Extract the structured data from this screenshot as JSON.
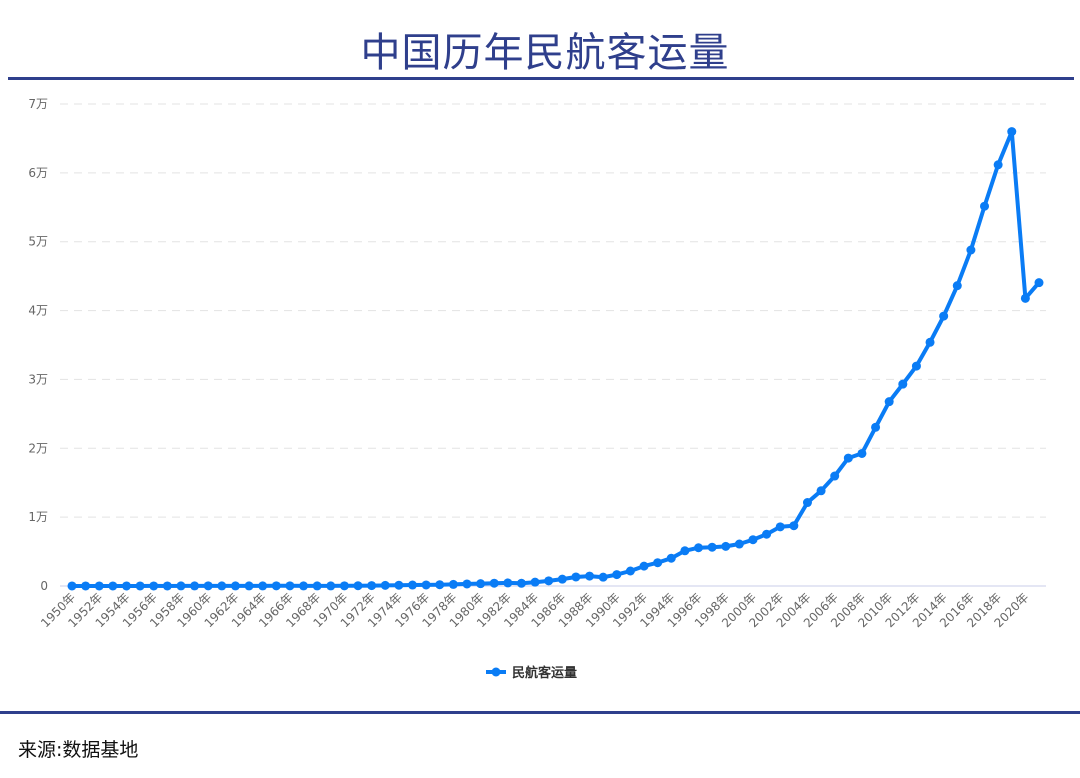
{
  "title": "中国历年民航客运量",
  "source": "来源:数据基地",
  "chart_data": {
    "type": "line",
    "title": "中国历年民航客运量",
    "x": [
      1950,
      1951,
      1952,
      1953,
      1954,
      1955,
      1956,
      1957,
      1958,
      1959,
      1960,
      1961,
      1962,
      1963,
      1964,
      1965,
      1966,
      1967,
      1968,
      1969,
      1970,
      1971,
      1972,
      1973,
      1974,
      1975,
      1976,
      1977,
      1978,
      1979,
      1980,
      1981,
      1982,
      1983,
      1984,
      1985,
      1986,
      1987,
      1988,
      1989,
      1990,
      1991,
      1992,
      1993,
      1994,
      1995,
      1996,
      1997,
      1998,
      1999,
      2000,
      2001,
      2002,
      2003,
      2004,
      2005,
      2006,
      2007,
      2008,
      2009,
      2010,
      2011,
      2012,
      2013,
      2014,
      2015,
      2016,
      2017,
      2018,
      2019,
      2020,
      2021
    ],
    "series": [
      {
        "name": "民航客运量",
        "color": "#0a7cf5",
        "values": [
          1,
          2,
          2,
          4,
          4,
          5,
          9,
          7,
          11,
          13,
          20,
          14,
          12,
          13,
          15,
          27,
          22,
          12,
          14,
          17,
          22,
          39,
          56,
          91,
          117,
          139,
          154,
          186,
          231,
          298,
          343,
          401,
          445,
          391,
          554,
          747,
          997,
          1310,
          1442,
          1283,
          1660,
          2178,
          2886,
          3383,
          4038,
          5117,
          5555,
          5630,
          5755,
          6094,
          6722,
          7524,
          8594,
          8759,
          12123,
          13827,
          15968,
          18576,
          19251,
          23052,
          26769,
          29317,
          31936,
          35397,
          39195,
          43618,
          48796,
          55156,
          61174,
          65993,
          41778,
          44056
        ]
      }
    ],
    "xtick_labels": [
      "1950年",
      "1952年",
      "1954年",
      "1956年",
      "1958年",
      "1960年",
      "1962年",
      "1964年",
      "1966年",
      "1968年",
      "1970年",
      "1972年",
      "1974年",
      "1976年",
      "1978年",
      "1980年",
      "1982年",
      "1984年",
      "1986年",
      "1988年",
      "1990年",
      "1992年",
      "1994年",
      "1996年",
      "1998年",
      "2000年",
      "2002年",
      "2004年",
      "2006年",
      "2008年",
      "2010年",
      "2012年",
      "2014年",
      "2016年",
      "2018年",
      "2020年"
    ],
    "ytick_values": [
      0,
      10000,
      20000,
      30000,
      40000,
      50000,
      60000,
      70000
    ],
    "ytick_labels": [
      "0",
      "1万",
      "2万",
      "3万",
      "4万",
      "5万",
      "6万",
      "7万"
    ],
    "ylim": [
      0,
      70000
    ],
    "grid": "horizontal dashed",
    "legend": "bottom-center"
  }
}
